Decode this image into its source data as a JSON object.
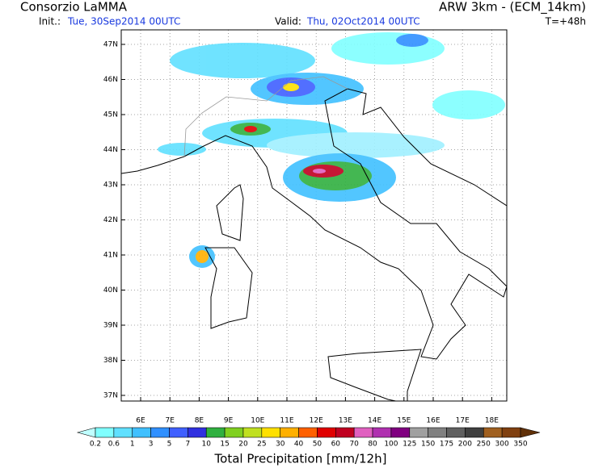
{
  "header": {
    "title": "Consorzio LaMMA",
    "model": "ARW 3km - (ECM_14km)",
    "init_label": "Init.:",
    "init": "Tue, 30Sep2014 00UTC",
    "valid_label": "Valid:",
    "valid": "Thu, 02Oct2014 00UTC",
    "lead": "T=+48h"
  },
  "map": {
    "lat_labels": [
      "47N",
      "46N",
      "45N",
      "44N",
      "43N",
      "42N",
      "41N",
      "40N",
      "39N",
      "38N",
      "37N"
    ],
    "lon_labels": [
      "6E",
      "7E",
      "8E",
      "9E",
      "10E",
      "11E",
      "12E",
      "13E",
      "14E",
      "15E",
      "16E",
      "17E",
      "18E"
    ]
  },
  "colorbar": {
    "title": "Total Precipitation [mm/12h]",
    "levels": [
      0.2,
      0.6,
      1,
      3,
      5,
      7,
      10,
      15,
      20,
      25,
      30,
      40,
      50,
      60,
      70,
      80,
      100,
      125,
      150,
      175,
      200,
      250,
      300,
      350
    ],
    "colors": [
      "#c0ffff",
      "#80ffff",
      "#60e0ff",
      "#40c0ff",
      "#3090ff",
      "#4060ff",
      "#3030e0",
      "#30b040",
      "#80d020",
      "#c0e020",
      "#ffe000",
      "#ffb000",
      "#ff6000",
      "#e00000",
      "#c00020",
      "#e060c0",
      "#b030b0",
      "#800080",
      "#a0a0a0",
      "#808080",
      "#606060",
      "#404040",
      "#a06020",
      "#804010",
      "#603008"
    ]
  }
}
